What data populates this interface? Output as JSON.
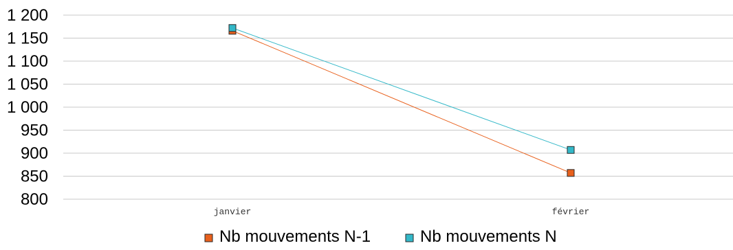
{
  "chart_data": {
    "type": "line",
    "title": "",
    "xlabel": "",
    "ylabel": "",
    "categories": [
      "janvier",
      "février"
    ],
    "ylim": [
      800,
      1200
    ],
    "yticks": [
      800,
      850,
      900,
      950,
      1000,
      1050,
      1100,
      1150,
      1200
    ],
    "ytick_labels": [
      "800",
      "850",
      "900",
      "950",
      "1 000",
      "1 050",
      "1 100",
      "1 150",
      "1 200"
    ],
    "grid": true,
    "legend_position": "bottom",
    "series": [
      {
        "name": "Nb mouvements N-1",
        "color": "#e8601c",
        "marker": "square",
        "values": [
          1166,
          857
        ]
      },
      {
        "name": "Nb mouvements N",
        "color": "#33b8c8",
        "marker": "square",
        "values": [
          1172,
          907
        ]
      }
    ]
  }
}
